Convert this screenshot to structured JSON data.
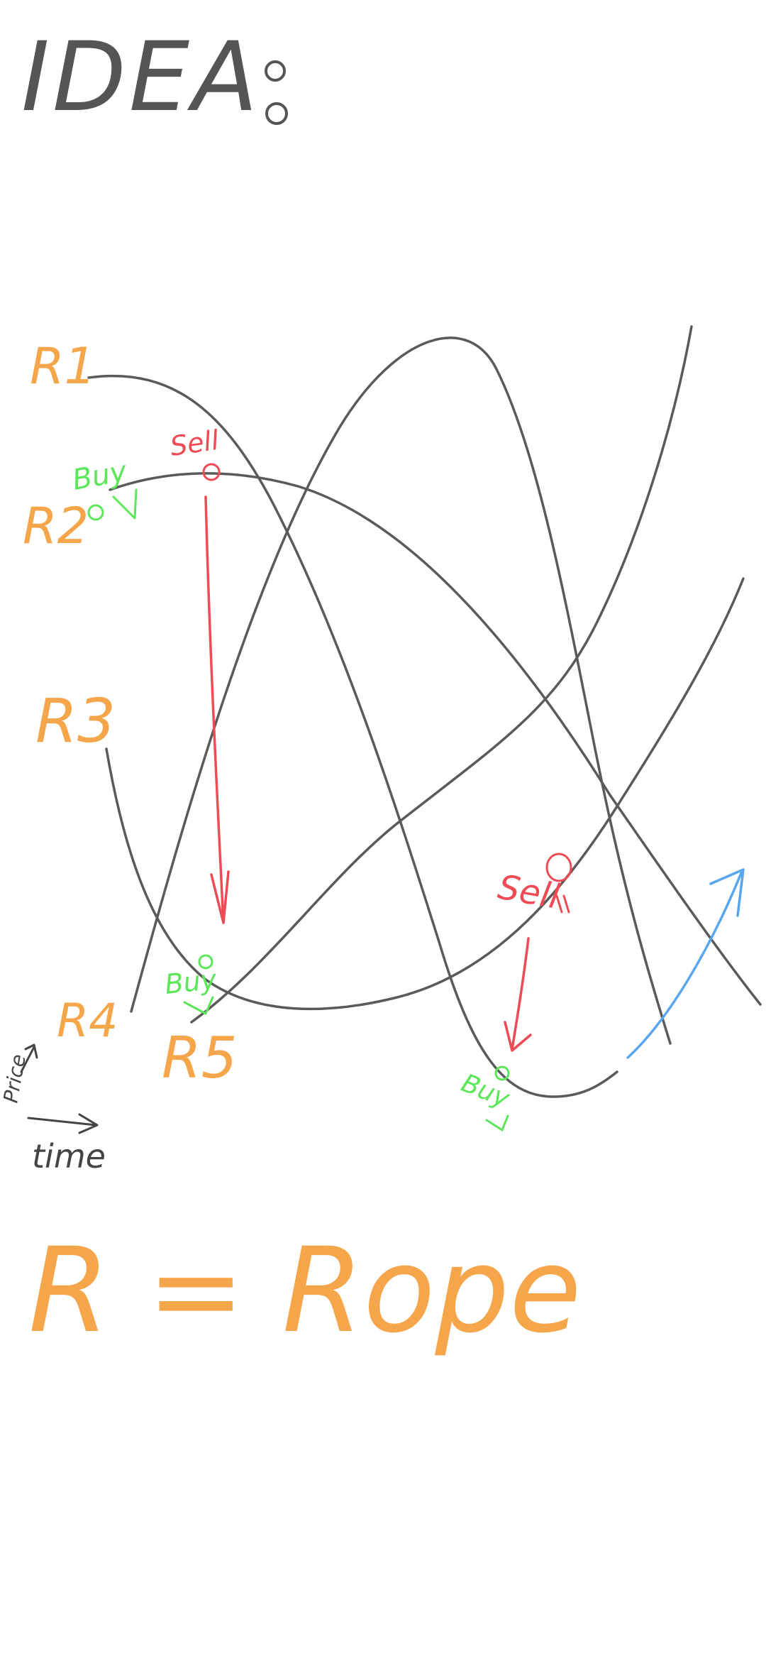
{
  "title": "IDEA",
  "title_colon": "°°",
  "ropes": [
    {
      "id": "R1",
      "label": "R1"
    },
    {
      "id": "R2",
      "label": "R2"
    },
    {
      "id": "R3",
      "label": "R3"
    },
    {
      "id": "R4",
      "label": "R4"
    },
    {
      "id": "R5",
      "label": "R5"
    }
  ],
  "signals": {
    "sell_1": "Sell",
    "buy_1": "Buy",
    "buy_2": "Buy",
    "sell_2": "Sell",
    "buy_3": "Buy"
  },
  "axes": {
    "y_label": "Price",
    "x_label": "time"
  },
  "legend": "R = Rope",
  "colors": {
    "rope_line": "#5a5a5a",
    "rope_label": "#f5a54a",
    "sell": "#ef4b55",
    "buy": "#5ce65a",
    "trend_arrow": "#5aa6ee",
    "ink": "#444444"
  }
}
